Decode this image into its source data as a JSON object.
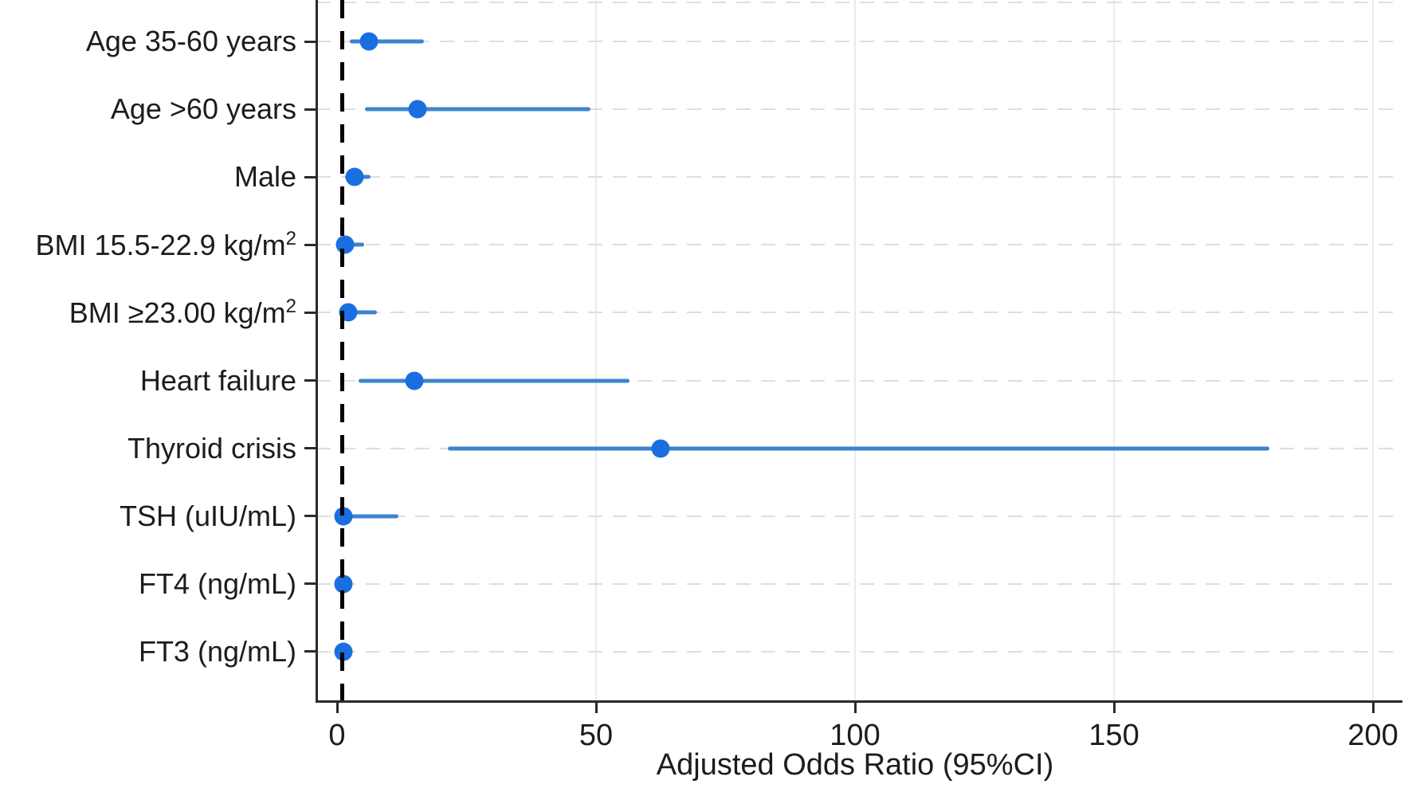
{
  "chart_data": {
    "type": "scatter",
    "subtype": "forest-plot",
    "title": "",
    "xlabel": "Adjusted Odds Ratio (95%CI)",
    "ylabel": "",
    "x_ticks": [
      0,
      50,
      100,
      150,
      200
    ],
    "xlim": [
      -4,
      205
    ],
    "reference_line_x": 1,
    "legend_position": "none",
    "grid": {
      "vertical_lines": true,
      "horizontal_dashed_row_lines": true
    },
    "rows": [
      {
        "label": "Age 35-60 years",
        "or": 6.2,
        "ci_low": 2.5,
        "ci_high": 16.8
      },
      {
        "label": "Age >60 years",
        "or": 15.5,
        "ci_low": 5.4,
        "ci_high": 49
      },
      {
        "label": "Male",
        "or": 3.4,
        "ci_low": 1.5,
        "ci_high": 6.5
      },
      {
        "label": "BMI 15.5-22.9 kg/m²",
        "or": 1.5,
        "ci_low": 0.6,
        "ci_high": 5.2
      },
      {
        "label": "BMI ≥23.00 kg/m²",
        "or": 2.2,
        "ci_low": 0.8,
        "ci_high": 7.7
      },
      {
        "label": "Heart failure",
        "or": 14.9,
        "ci_low": 4.2,
        "ci_high": 56.5
      },
      {
        "label": "Thyroid crisis",
        "or": 62.5,
        "ci_low": 21.4,
        "ci_high": 180
      },
      {
        "label": "TSH (uIU/mL)",
        "or": 1.2,
        "ci_low": 0.3,
        "ci_high": 11.8
      },
      {
        "label": "FT4 (ng/mL)",
        "or": 1.3,
        "ci_low": 0.5,
        "ci_high": 2.9
      },
      {
        "label": "FT3 (ng/mL)",
        "or": 1.2,
        "ci_low": 0.6,
        "ci_high": 2.3
      }
    ]
  },
  "colors": {
    "marker": "#1a6ee0",
    "ci_line": "#3e83cd",
    "reference_line": "#000000",
    "axis": "#2a2a2a",
    "grid_vertical": "#ebebee",
    "grid_horizontal": "#dedede",
    "text": "#1c1c1c",
    "background": "#ffffff"
  }
}
